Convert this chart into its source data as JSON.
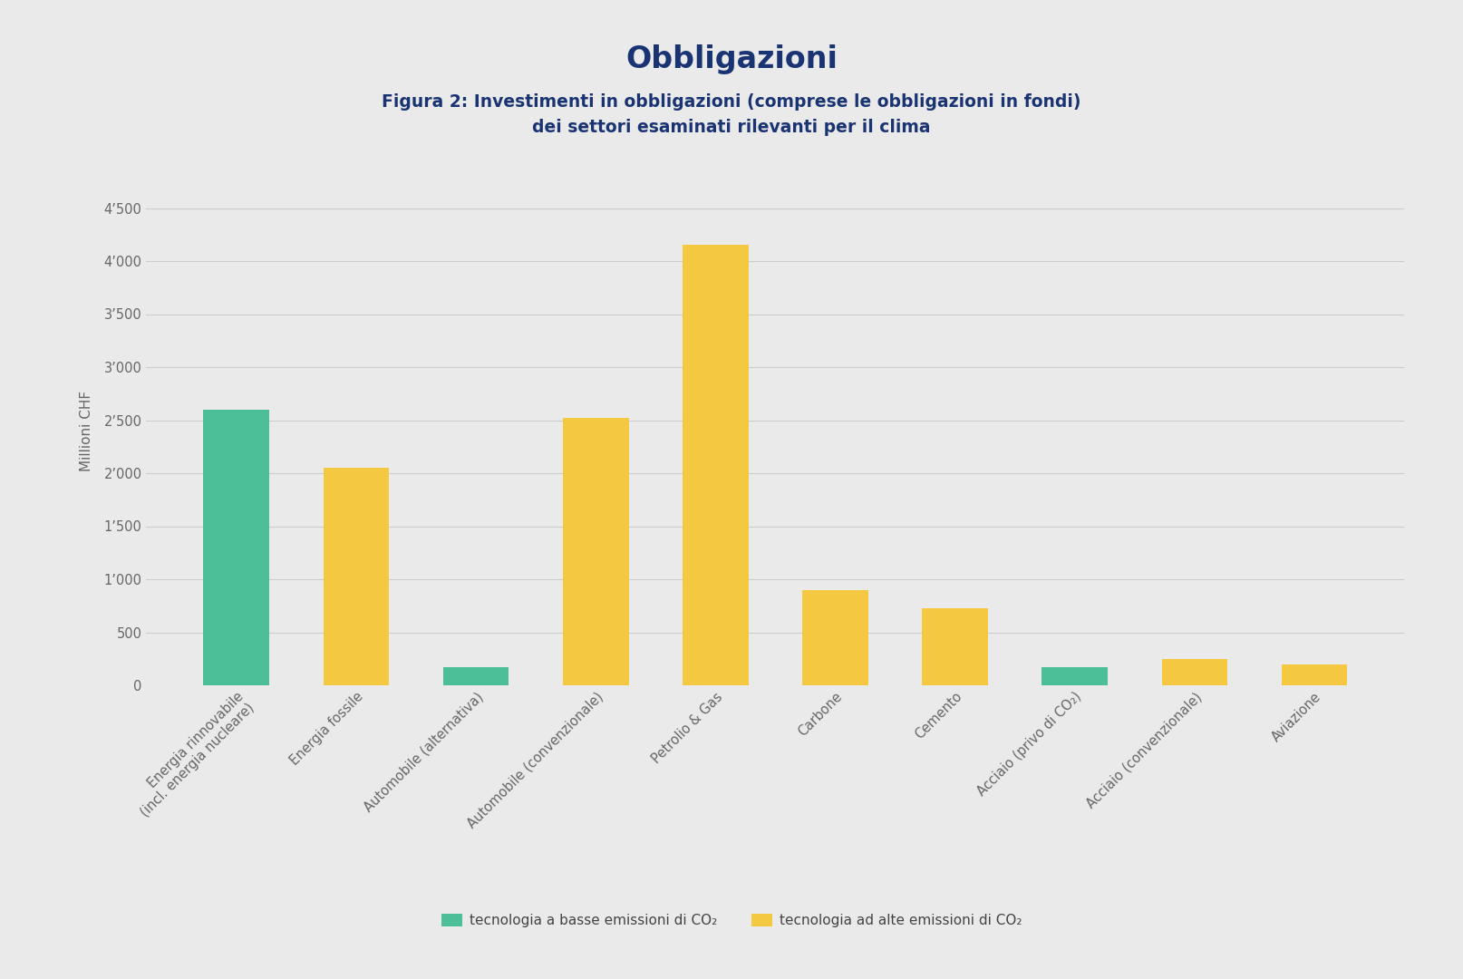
{
  "title": "Obbligazioni",
  "subtitle": "Figura 2: Investimenti in obbligazioni (comprese le obbligazioni in fondi)\ndei settori esaminati rilevanti per il clima",
  "ylabel": "Millioni CHF",
  "categories": [
    "Energia rinnovabile\n(incl. energia nucleare)",
    "Energia fossile",
    "Automobile (alternativa)",
    "Automobile (convenzionale)",
    "Petrolio & Gas",
    "Carbone",
    "Cemento",
    "Acciaio (privo di CO₂)",
    "Acciaio (convenzionale)",
    "Aviazione"
  ],
  "values": [
    2600,
    2050,
    175,
    2520,
    4150,
    900,
    730,
    175,
    250,
    200
  ],
  "colors": [
    "#4cbf98",
    "#f5c842",
    "#4cbf98",
    "#f5c842",
    "#f5c842",
    "#f5c842",
    "#f5c842",
    "#4cbf98",
    "#f5c842",
    "#f5c842"
  ],
  "yticks": [
    0,
    500,
    1000,
    1500,
    2000,
    2500,
    3000,
    3500,
    4000,
    4500
  ],
  "ytick_labels": [
    "0",
    "500",
    "1’000",
    "1’500",
    "2’000",
    "2’500",
    "3’000",
    "3’500",
    "4’000",
    "4’500"
  ],
  "ylim": [
    0,
    4800
  ],
  "background_color": "#eaeaea",
  "title_color": "#1a3473",
  "subtitle_color": "#1a3473",
  "ylabel_color": "#666666",
  "ytick_color": "#666666",
  "xtick_color": "#666666",
  "grid_color": "#cccccc",
  "legend_green_label": "tecnologia a basse emissioni di CO₂",
  "legend_yellow_label": "tecnologia ad alte emissioni di CO₂",
  "green_color": "#4cbf98",
  "yellow_color": "#f5c842",
  "bar_width": 0.55,
  "title_fontsize": 24,
  "subtitle_fontsize": 13.5,
  "ylabel_fontsize": 11,
  "tick_label_fontsize": 10.5,
  "legend_fontsize": 11
}
